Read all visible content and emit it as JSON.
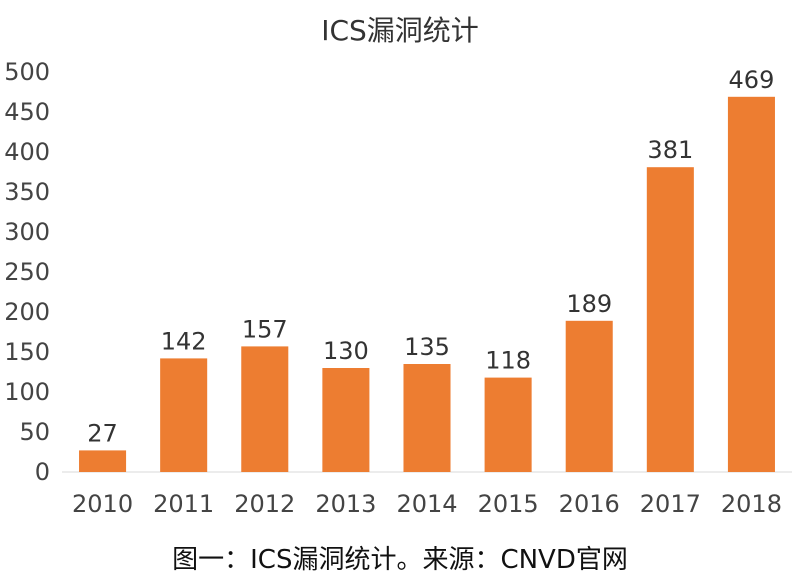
{
  "chart_data": {
    "type": "bar",
    "title": "ICS漏洞统计",
    "categories": [
      "2010",
      "2011",
      "2012",
      "2013",
      "2014",
      "2015",
      "2016",
      "2017",
      "2018"
    ],
    "values": [
      27,
      142,
      157,
      130,
      135,
      118,
      189,
      381,
      469
    ],
    "xlabel": "",
    "ylabel": "",
    "ylim": [
      0,
      500
    ],
    "y_ticks": [
      0,
      50,
      100,
      150,
      200,
      250,
      300,
      350,
      400,
      450,
      500
    ],
    "grid": false,
    "legend": "none",
    "bar_color": "#ed7d31",
    "data_labels": true
  },
  "caption": "图一：ICS漏洞统计。来源：CNVD官网"
}
